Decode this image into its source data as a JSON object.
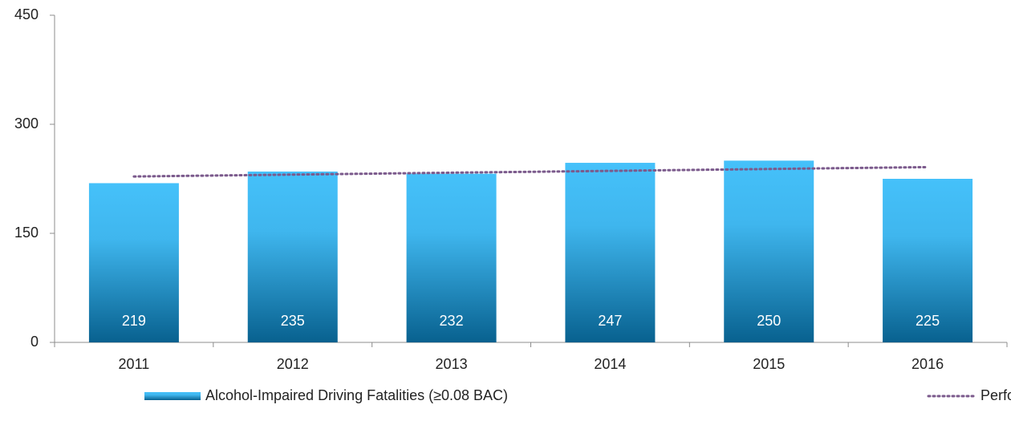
{
  "chart_data": {
    "type": "bar",
    "categories": [
      "2011",
      "2012",
      "2013",
      "2014",
      "2015",
      "2016"
    ],
    "series": [
      {
        "name": "Alcohol-Impaired Driving Fatalities (≥0.08 BAC)",
        "type": "bar",
        "color": "#45c1fa",
        "values": [
          219,
          235,
          232,
          247,
          250,
          225
        ]
      },
      {
        "name": "Performance Trend",
        "type": "line",
        "color": "#7b5a8c",
        "values": [
          228.2,
          230.8,
          233.4,
          235.9,
          238.5,
          241.1
        ]
      }
    ],
    "ylim": [
      0,
      450
    ],
    "yticks": [
      0,
      150,
      300,
      450
    ],
    "legend": "bottom"
  }
}
